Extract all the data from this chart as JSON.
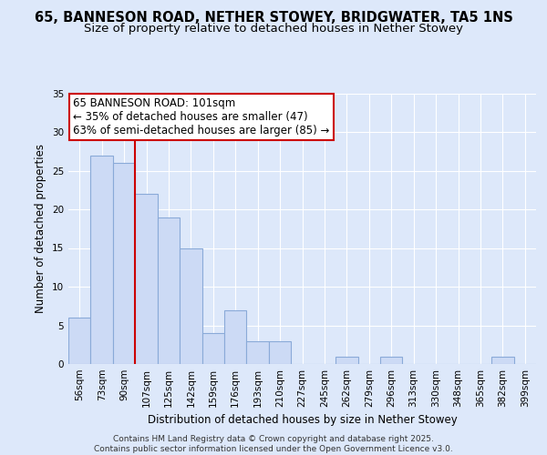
{
  "title1": "65, BANNESON ROAD, NETHER STOWEY, BRIDGWATER, TA5 1NS",
  "title2": "Size of property relative to detached houses in Nether Stowey",
  "xlabel": "Distribution of detached houses by size in Nether Stowey",
  "ylabel": "Number of detached properties",
  "categories": [
    "56sqm",
    "73sqm",
    "90sqm",
    "107sqm",
    "125sqm",
    "142sqm",
    "159sqm",
    "176sqm",
    "193sqm",
    "210sqm",
    "227sqm",
    "245sqm",
    "262sqm",
    "279sqm",
    "296sqm",
    "313sqm",
    "330sqm",
    "348sqm",
    "365sqm",
    "382sqm",
    "399sqm"
  ],
  "values": [
    6,
    27,
    26,
    22,
    19,
    15,
    4,
    7,
    3,
    3,
    0,
    0,
    1,
    0,
    1,
    0,
    0,
    0,
    0,
    1,
    0
  ],
  "bar_color": "#ccdaf5",
  "bar_edge_color": "#8aaad8",
  "marker_line_color": "#cc0000",
  "annotation_line1": "65 BANNESON ROAD: 101sqm",
  "annotation_line2": "← 35% of detached houses are smaller (47)",
  "annotation_line3": "63% of semi-detached houses are larger (85) →",
  "annotation_box_color": "#ffffff",
  "annotation_box_edge_color": "#cc0000",
  "ylim": [
    0,
    35
  ],
  "yticks": [
    0,
    5,
    10,
    15,
    20,
    25,
    30,
    35
  ],
  "background_color": "#dde8fa",
  "grid_color": "#ffffff",
  "footer_line1": "Contains HM Land Registry data © Crown copyright and database right 2025.",
  "footer_line2": "Contains public sector information licensed under the Open Government Licence v3.0.",
  "title1_fontsize": 10.5,
  "title2_fontsize": 9.5,
  "xlabel_fontsize": 8.5,
  "ylabel_fontsize": 8.5,
  "tick_fontsize": 7.5,
  "annotation_fontsize": 8.5,
  "footer_fontsize": 6.5
}
